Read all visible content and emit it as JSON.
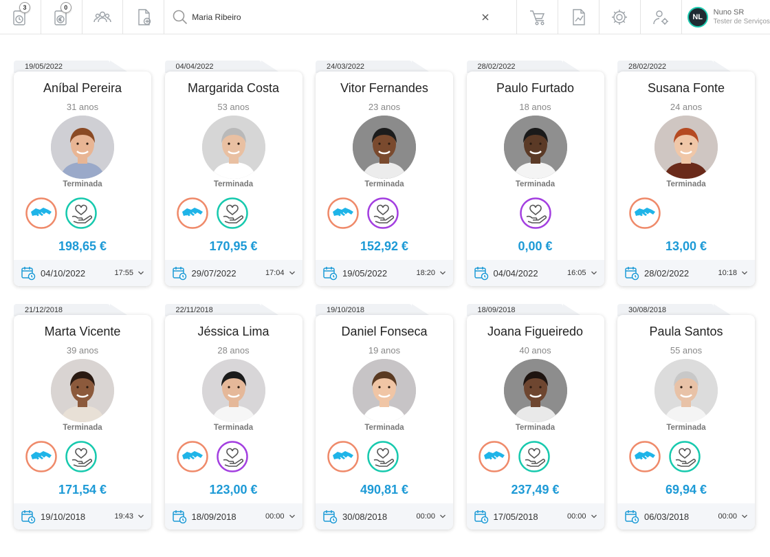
{
  "toolbar": {
    "badge_1": "3",
    "badge_2": "0",
    "search_value": "Maria Ribeiro"
  },
  "user": {
    "initials": "NL",
    "name": "Nuno SR",
    "role": "Tester de Serviços"
  },
  "colors": {
    "amount": "#1d9ad6",
    "handshake_ring": "#ef8a6a",
    "handshake_fill": "#1fb4e8",
    "care_ring_teal": "#17c9ae",
    "care_ring_purple": "#a33fe0"
  },
  "cards": [
    {
      "tab_date": "19/05/2022",
      "name": "Aníbal Pereira",
      "age": "31 anos",
      "status": "Terminada",
      "icons": [
        "handshake-icon",
        "care-teal-icon"
      ],
      "amount": "198,65 €",
      "date": "04/10/2022",
      "time": "17:55"
    },
    {
      "tab_date": "04/04/2022",
      "name": "Margarida Costa",
      "age": "53 anos",
      "status": "Terminada",
      "icons": [
        "handshake-icon",
        "care-teal-icon"
      ],
      "amount": "170,95 €",
      "date": "29/07/2022",
      "time": "17:04"
    },
    {
      "tab_date": "24/03/2022",
      "name": "Vitor Fernandes",
      "age": "23 anos",
      "status": "Terminada",
      "icons": [
        "handshake-icon",
        "care-purple-icon"
      ],
      "amount": "152,92 €",
      "date": "19/05/2022",
      "time": "18:20"
    },
    {
      "tab_date": "28/02/2022",
      "name": "Paulo Furtado",
      "age": "18 anos",
      "status": "Terminada",
      "icons": [
        "care-purple-icon"
      ],
      "amount": "0,00 €",
      "date": "04/04/2022",
      "time": "16:05"
    },
    {
      "tab_date": "28/02/2022",
      "name": "Susana Fonte",
      "age": "24 anos",
      "status": "Terminada",
      "icons": [
        "handshake-icon"
      ],
      "amount": "13,00 €",
      "date": "28/02/2022",
      "time": "10:18"
    },
    {
      "tab_date": "21/12/2018",
      "name": "Marta Vicente",
      "age": "39 anos",
      "status": "Terminada",
      "icons": [
        "handshake-icon",
        "care-teal-icon"
      ],
      "amount": "171,54 €",
      "date": "19/10/2018",
      "time": "19:43"
    },
    {
      "tab_date": "22/11/2018",
      "name": "Jéssica Lima",
      "age": "28 anos",
      "status": "Terminada",
      "icons": [
        "handshake-icon",
        "care-purple-icon"
      ],
      "amount": "123,00 €",
      "date": "18/09/2018",
      "time": "00:00"
    },
    {
      "tab_date": "19/10/2018",
      "name": "Daniel Fonseca",
      "age": "19 anos",
      "status": "Terminada",
      "icons": [
        "handshake-icon",
        "care-teal-icon"
      ],
      "amount": "490,81 €",
      "date": "30/08/2018",
      "time": "00:00"
    },
    {
      "tab_date": "18/09/2018",
      "name": "Joana Figueiredo",
      "age": "40 anos",
      "status": "Terminada",
      "icons": [
        "handshake-icon",
        "care-teal-icon"
      ],
      "amount": "237,49 €",
      "date": "17/05/2018",
      "time": "00:00"
    },
    {
      "tab_date": "30/08/2018",
      "name": "Paula Santos",
      "age": "55 anos",
      "status": "Terminada",
      "icons": [
        "handshake-icon",
        "care-teal-icon"
      ],
      "amount": "69,94 €",
      "date": "06/03/2018",
      "time": "00:00"
    }
  ]
}
